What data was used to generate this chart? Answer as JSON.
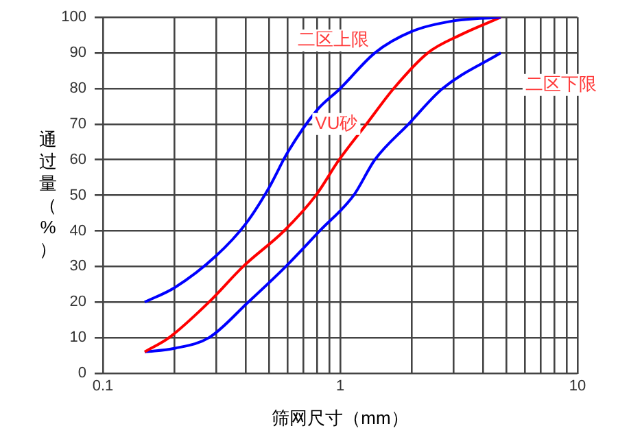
{
  "chart_data": {
    "type": "line",
    "xlabel": "筛网尺寸（mm）",
    "ylabel": "通过量（%）",
    "log": "x",
    "grid": true,
    "legend": false,
    "marker": "none",
    "line_style": "solid",
    "xlim": [
      0.1,
      10
    ],
    "xticks": [
      0.1,
      {
        "value": 0.2,
        "label": null
      },
      {
        "value": 0.3,
        "label": null
      },
      {
        "value": 0.4,
        "label": null
      },
      {
        "value": 0.5,
        "label": null
      },
      {
        "value": 0.6,
        "label": null
      },
      {
        "value": 0.7,
        "label": null
      },
      {
        "value": 0.8,
        "label": null
      },
      {
        "value": 0.9,
        "label": null
      },
      1,
      {
        "value": 2,
        "label": null
      },
      {
        "value": 3,
        "label": null
      },
      {
        "value": 4,
        "label": null
      },
      {
        "value": 5,
        "label": null
      },
      {
        "value": 6,
        "label": null
      },
      {
        "value": 7,
        "label": null
      },
      {
        "value": 8,
        "label": null
      },
      {
        "value": 9,
        "label": null
      },
      10
    ],
    "ylim": [
      0,
      100
    ],
    "yticks": [
      0,
      10,
      20,
      30,
      40,
      50,
      60,
      70,
      80,
      90,
      100
    ],
    "series": [
      {
        "name": "二区上限",
        "color": "#0000ff",
        "x": [
          0.15,
          0.2,
          0.3,
          0.4,
          0.5,
          0.6,
          0.8,
          1,
          1.4,
          2,
          3,
          4.75
        ],
        "values": [
          20,
          24,
          33,
          42,
          52,
          62,
          74,
          80,
          90,
          96,
          99,
          100
        ]
      },
      {
        "name": "VU砂",
        "color": "#ff0000",
        "x": [
          0.15,
          0.19,
          0.28,
          0.39,
          0.58,
          0.79,
          0.99,
          1.29,
          1.68,
          2.34,
          3.2,
          4.75
        ],
        "values": [
          6,
          10,
          20,
          30,
          40,
          50,
          60,
          70,
          80,
          90,
          95,
          100
        ]
      },
      {
        "name": "二区下限",
        "color": "#0000ff",
        "x": [
          0.15,
          0.2,
          0.28,
          0.41,
          0.59,
          0.82,
          1.14,
          1.4,
          1.94,
          2.7,
          4.75
        ],
        "values": [
          6,
          7,
          10,
          20,
          30,
          40,
          50,
          60,
          70,
          80,
          90
        ]
      }
    ]
  }
}
